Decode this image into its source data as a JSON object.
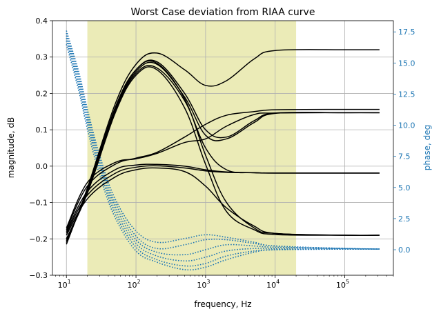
{
  "chart_data": {
    "type": "line",
    "title": "Worst Case deviation from RIAA curve",
    "xlabel": "frequency, Hz",
    "ylabel": "magnitude, dB",
    "y2label": "phase, deg",
    "xscale": "log",
    "xlim": [
      6.3,
      500000
    ],
    "ylim": [
      -0.3,
      0.4
    ],
    "y2lim": [
      -2.05,
      18.4
    ],
    "grid": true,
    "colors": {
      "magnitude": "#000000",
      "phase": "#1f77b4",
      "band": "#e8e8aa"
    },
    "audio_band_hz": [
      20,
      20000
    ],
    "x_ticks": [
      {
        "value": 10,
        "base": "10",
        "exp": "1"
      },
      {
        "value": 100,
        "base": "10",
        "exp": "2"
      },
      {
        "value": 1000,
        "base": "10",
        "exp": "3"
      },
      {
        "value": 10000,
        "base": "10",
        "exp": "4"
      },
      {
        "value": 100000,
        "base": "10",
        "exp": "5"
      }
    ],
    "y_ticks": [
      "-0.3",
      "-0.2",
      "-0.1",
      "0.0",
      "0.1",
      "0.2",
      "0.3",
      "0.4"
    ],
    "y2_ticks": [
      "0.0",
      "2.5",
      "5.0",
      "7.5",
      "10.0",
      "12.5",
      "15.0",
      "17.5"
    ],
    "magnitude_series": [
      {
        "x": [
          10,
          20,
          50,
          100,
          200,
          500,
          1000,
          2000,
          5000,
          10000,
          100000,
          316000
        ],
        "y": [
          -0.215,
          -0.06,
          0.17,
          0.28,
          0.311,
          0.265,
          0.222,
          0.235,
          0.295,
          0.318,
          0.32,
          0.32
        ]
      },
      {
        "x": [
          10,
          20,
          50,
          100,
          200,
          500,
          1000,
          2000,
          5000,
          10000,
          100000,
          316000
        ],
        "y": [
          -0.21,
          -0.065,
          0.16,
          0.265,
          0.287,
          0.2,
          0.1,
          0.08,
          0.125,
          0.146,
          0.147,
          0.147
        ]
      },
      {
        "x": [
          10,
          20,
          50,
          100,
          200,
          500,
          1000,
          2000,
          5000,
          10000,
          100000,
          316000
        ],
        "y": [
          -0.205,
          -0.07,
          0.155,
          0.26,
          0.28,
          0.19,
          0.085,
          0.075,
          0.12,
          0.145,
          0.147,
          0.147
        ]
      },
      {
        "x": [
          10,
          20,
          50,
          100,
          200,
          500,
          1000,
          2000,
          5000,
          10000,
          100000,
          316000
        ],
        "y": [
          -0.2,
          -0.072,
          0.15,
          0.255,
          0.27,
          0.18,
          0.05,
          -0.01,
          -0.018,
          -0.019,
          -0.019,
          -0.019
        ]
      },
      {
        "x": [
          10,
          20,
          50,
          100,
          200,
          500,
          1000,
          2000,
          5000,
          10000,
          100000,
          316000
        ],
        "y": [
          -0.21,
          -0.065,
          0.16,
          0.265,
          0.283,
          0.185,
          0.03,
          -0.1,
          -0.17,
          -0.185,
          -0.19,
          -0.19
        ]
      },
      {
        "x": [
          10,
          20,
          50,
          100,
          200,
          500,
          1000,
          2000,
          5000,
          10000,
          100000,
          316000
        ],
        "y": [
          -0.2,
          -0.075,
          0.145,
          0.25,
          0.265,
          0.16,
          0.005,
          -0.125,
          -0.175,
          -0.188,
          -0.19,
          -0.19
        ]
      },
      {
        "x": [
          10,
          20,
          50,
          100,
          200,
          500,
          1000,
          2000,
          5000,
          10000,
          100000,
          316000
        ],
        "y": [
          -0.19,
          -0.09,
          -0.03,
          -0.01,
          -0.005,
          -0.015,
          -0.055,
          -0.115,
          -0.165,
          -0.185,
          -0.19,
          -0.19
        ]
      },
      {
        "x": [
          10,
          20,
          50,
          100,
          200,
          500,
          1000,
          2000,
          5000,
          10000,
          100000,
          316000
        ],
        "y": [
          -0.185,
          -0.08,
          -0.02,
          -0.003,
          0.001,
          -0.005,
          -0.013,
          -0.017,
          -0.018,
          -0.019,
          -0.019,
          -0.019
        ]
      },
      {
        "x": [
          10,
          20,
          50,
          100,
          200,
          500,
          1000,
          2000,
          5000,
          10000,
          100000,
          316000
        ],
        "y": [
          -0.18,
          -0.07,
          -0.01,
          0.003,
          0.005,
          0.0,
          -0.01,
          -0.016,
          -0.018,
          -0.019,
          -0.019,
          -0.019
        ]
      },
      {
        "x": [
          10,
          20,
          50,
          100,
          200,
          500,
          1000,
          2000,
          5000,
          10000,
          100000,
          316000
        ],
        "y": [
          -0.175,
          -0.055,
          0.005,
          0.022,
          0.038,
          0.08,
          0.115,
          0.14,
          0.15,
          0.155,
          0.156,
          0.156
        ]
      },
      {
        "x": [
          10,
          20,
          50,
          100,
          200,
          500,
          1000,
          2000,
          5000,
          10000,
          100000,
          316000
        ],
        "y": [
          -0.17,
          -0.045,
          0.01,
          0.02,
          0.035,
          0.065,
          0.075,
          0.11,
          0.142,
          0.146,
          0.147,
          0.147
        ]
      }
    ],
    "phase_series": [
      {
        "x": [
          10,
          15,
          20,
          30,
          50,
          100,
          200,
          500,
          1000,
          2000,
          5000,
          10000,
          100000,
          316000
        ],
        "y": [
          17.6,
          14.3,
          11.3,
          7.6,
          4.1,
          1.5,
          0.6,
          0.9,
          1.2,
          1.0,
          0.6,
          0.3,
          0.1,
          0.05
        ]
      },
      {
        "x": [
          10,
          15,
          20,
          30,
          50,
          100,
          200,
          500,
          1000,
          2000,
          5000,
          10000,
          100000,
          316000
        ],
        "y": [
          17.4,
          14.0,
          11.0,
          7.3,
          3.8,
          1.1,
          0.1,
          0.4,
          0.8,
          0.8,
          0.5,
          0.3,
          0.1,
          0.05
        ]
      },
      {
        "x": [
          10,
          15,
          20,
          30,
          50,
          100,
          200,
          500,
          1000,
          2000,
          5000,
          10000,
          100000,
          316000
        ],
        "y": [
          17.2,
          13.7,
          10.7,
          7.0,
          3.5,
          0.8,
          -0.2,
          -0.4,
          0.0,
          0.4,
          0.3,
          0.2,
          0.1,
          0.05
        ]
      },
      {
        "x": [
          10,
          15,
          20,
          30,
          50,
          100,
          200,
          500,
          1000,
          2000,
          5000,
          10000,
          100000,
          316000
        ],
        "y": [
          17.0,
          13.4,
          10.4,
          6.7,
          3.2,
          0.5,
          -0.5,
          -0.9,
          -0.6,
          -0.1,
          0.1,
          0.1,
          0.05,
          0.05
        ]
      },
      {
        "x": [
          10,
          15,
          20,
          30,
          50,
          100,
          200,
          500,
          1000,
          2000,
          5000,
          10000,
          100000,
          316000
        ],
        "y": [
          16.8,
          13.1,
          10.1,
          6.4,
          2.9,
          0.2,
          -0.8,
          -1.3,
          -1.1,
          -0.5,
          -0.1,
          0.0,
          0.05,
          0.05
        ]
      },
      {
        "x": [
          10,
          15,
          20,
          30,
          50,
          100,
          200,
          500,
          1000,
          2000,
          5000,
          10000,
          100000,
          316000
        ],
        "y": [
          16.5,
          12.8,
          9.7,
          6.0,
          2.6,
          -0.1,
          -1.0,
          -1.6,
          -1.4,
          -0.8,
          -0.2,
          0.0,
          0.05,
          0.05
        ]
      }
    ]
  }
}
